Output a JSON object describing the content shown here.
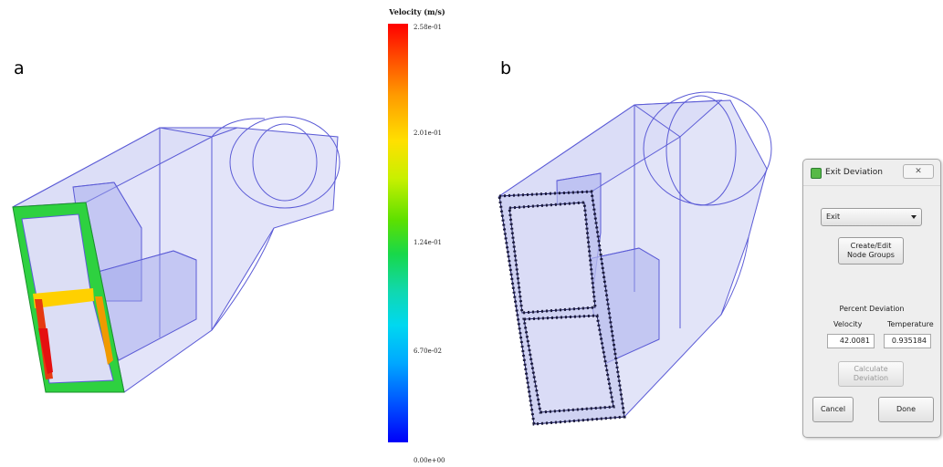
{
  "panels": {
    "a_label": "a",
    "b_label": "b"
  },
  "colorbar": {
    "title": "Velocity (m/s)",
    "ticks": [
      "2.58e-01",
      "2.01e-01",
      "1.24e-01",
      "6.70e-02",
      "0.00e+00"
    ],
    "top_color": "#ff0000",
    "bottom_color": "#0000f8"
  },
  "dialog": {
    "title": "Exit Deviation",
    "close_icon": "close-icon",
    "select_value": "Exit",
    "create_button": [
      "Create/Edit",
      "Node Groups"
    ],
    "percent_deviation_label": "Percent Deviation",
    "velocity_label": "Velocity",
    "temperature_label": "Temperature",
    "velocity_value": "42.0081",
    "temperature_value": "0.935184",
    "calculate_button": [
      "Calculate",
      "Deviation"
    ],
    "cancel_label": "Cancel",
    "done_label": "Done"
  },
  "colors": {
    "wireframe": "#5b5bd6",
    "wireframe_fill": "#c9cbf2"
  }
}
